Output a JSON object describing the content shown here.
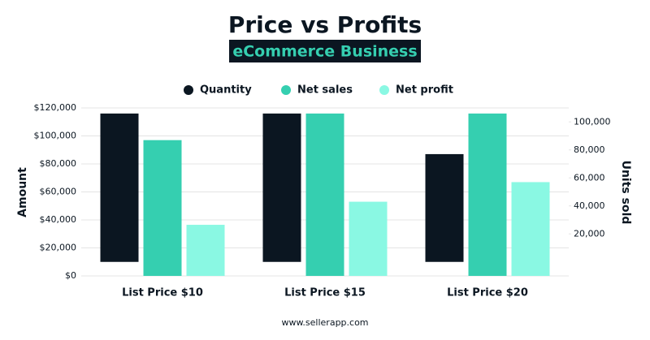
{
  "chart_data": {
    "type": "bar",
    "title": "Price vs Profits",
    "subtitle": "eCommerce Business",
    "categories": [
      "List Price $10",
      "List Price $15",
      "List Price $20"
    ],
    "series": [
      {
        "name": "Quantity",
        "color": "#0b1621",
        "axis": "y2",
        "values": [
          106000,
          106000,
          77000
        ]
      },
      {
        "name": "Net sales",
        "color": "#35cfb0",
        "values": [
          97000,
          116000,
          116000
        ]
      },
      {
        "name": "Net profit",
        "color": "#8af8e3",
        "values": [
          36500,
          53000,
          67000
        ]
      }
    ],
    "ylabel": "Amount",
    "y2label": "Units sold",
    "ylim": [
      0,
      120000
    ],
    "yticks": [
      {
        "value": 0,
        "label": "$0"
      },
      {
        "value": 20000,
        "label": "$20,000"
      },
      {
        "value": 40000,
        "label": "$40,000"
      },
      {
        "value": 60000,
        "label": "$60,000"
      },
      {
        "value": 80000,
        "label": "$80,000"
      },
      {
        "value": 100000,
        "label": "$100,000"
      },
      {
        "value": 120000,
        "label": "$120,000"
      }
    ],
    "y2lim": [
      -10000,
      110000
    ],
    "y2ticks": [
      {
        "value": 20000,
        "label": "20,000"
      },
      {
        "value": 40000,
        "label": "40,000"
      },
      {
        "value": 60000,
        "label": "60,000"
      },
      {
        "value": 80000,
        "label": "80,000"
      },
      {
        "value": 100000,
        "label": "100,000"
      }
    ],
    "grid": true,
    "legend": "top",
    "source": "www.sellerapp.com"
  }
}
